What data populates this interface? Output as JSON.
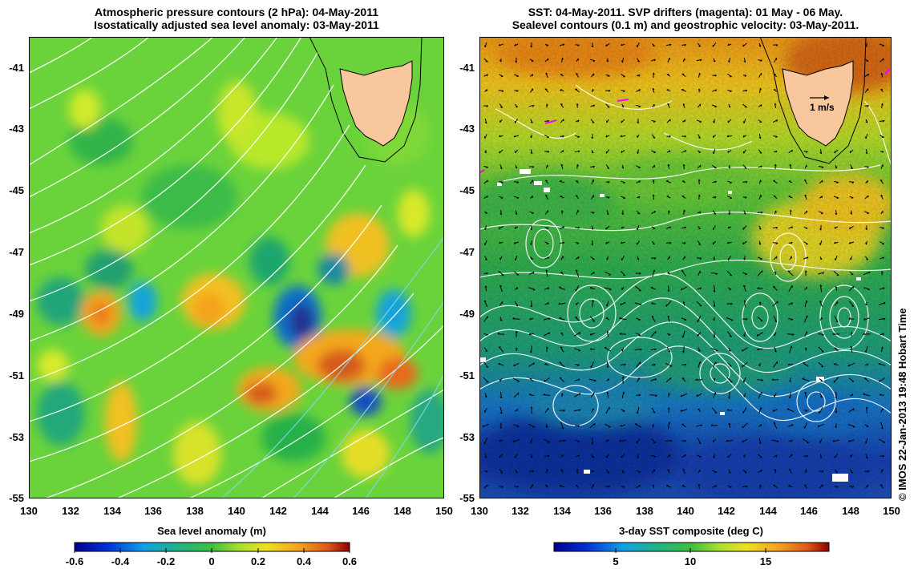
{
  "left_panel": {
    "title_line1": "Atmospheric pressure contours (2 hPa): 04-May-2011",
    "title_line2": "Isostatically adjusted sea level anomaly: 03-May-2011",
    "y_ticks": [
      "-41",
      "-43",
      "-45",
      "-47",
      "-49",
      "-51",
      "-53",
      "-55"
    ],
    "x_ticks": [
      "130",
      "132",
      "134",
      "136",
      "138",
      "140",
      "142",
      "144",
      "146",
      "148",
      "150"
    ],
    "colorbar_label": "Sea level anomaly (m)",
    "colorbar_ticks": [
      "-0.6",
      "-0.4",
      "-0.2",
      "0",
      "0.2",
      "0.4",
      "0.6"
    ]
  },
  "right_panel": {
    "title_line1": "SST: 04-May-2011. SVP drifters (magenta): 01 May - 06 May.",
    "title_line2": "Sealevel contours (0.1 m) and geostrophic velocity: 03-May-2011.",
    "y_ticks": [
      "-41",
      "-43",
      "-45",
      "-47",
      "-49",
      "-51",
      "-53",
      "-55"
    ],
    "x_ticks": [
      "130",
      "132",
      "134",
      "136",
      "138",
      "140",
      "142",
      "144",
      "146",
      "148",
      "150"
    ],
    "velocity_scale_label": "1 m/s",
    "colorbar_label": "3-day SST composite (deg C)",
    "colorbar_ticks": [
      "5",
      "10",
      "15"
    ]
  },
  "stamp": "© IMOS 22-Jan-2013 19:48 Hobart Time",
  "colors": {
    "land": "#f9c79e",
    "land_outline": "#000000",
    "contours": "#ffffff",
    "drifter": "#ff00ff"
  }
}
